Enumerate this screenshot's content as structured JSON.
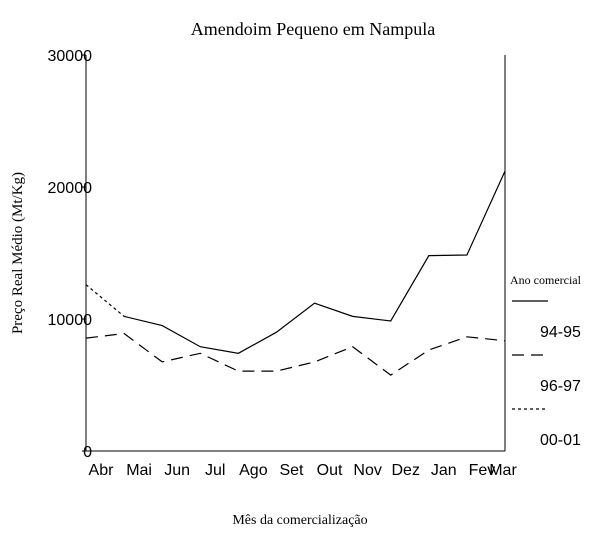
{
  "chart_data": {
    "type": "line",
    "title": "Amendoim Pequeno em Nampula",
    "x_label": "Mês da comercialização",
    "y_label": "Preço Real Médio (Mt/Kg)",
    "legend_title": "Ano comercial",
    "categories": [
      "Abr",
      "Mai",
      "Jun",
      "Jul",
      "Ago",
      "Set",
      "Out",
      "Nov",
      "Dez",
      "Jan",
      "Fev",
      "Mar"
    ],
    "series": [
      {
        "name": "94-95",
        "color": "#000000",
        "line_style": "solid",
        "values": [
          null,
          10200,
          9500,
          7900,
          7400,
          9000,
          11200,
          10200,
          9850,
          14800,
          14850,
          21200
        ]
      },
      {
        "name": "96-97",
        "color": "#000000",
        "line_style": "dashed",
        "values": [
          8550,
          8900,
          6750,
          7400,
          6050,
          6050,
          6750,
          7900,
          5750,
          7650,
          8650,
          8350
        ]
      },
      {
        "name": "00-01",
        "color": "#000000",
        "line_style": "dotted",
        "values": [
          12600,
          10200,
          null,
          null,
          null,
          null,
          null,
          null,
          null,
          null,
          null,
          null
        ]
      }
    ],
    "ylim": [
      0,
      30000
    ],
    "yticks": [
      0,
      10000,
      20000,
      30000
    ],
    "grid": false,
    "legend_position": "right"
  }
}
